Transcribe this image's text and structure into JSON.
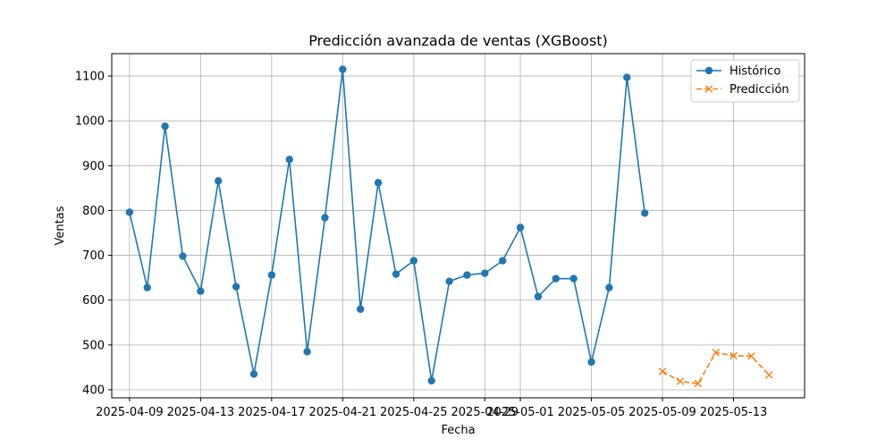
{
  "chart_data": {
    "type": "line",
    "title": "Predicción avanzada de ventas (XGBoost)",
    "xlabel": "Fecha",
    "ylabel": "Ventas",
    "x_tick_labels": [
      "2025-04-09",
      "2025-04-13",
      "2025-04-17",
      "2025-04-21",
      "2025-04-25",
      "2025-04-29",
      "2025-05-01",
      "2025-05-05",
      "2025-05-09",
      "2025-05-13"
    ],
    "y_ticks": [
      400,
      500,
      600,
      700,
      800,
      900,
      1000,
      1100
    ],
    "ylim": [
      382,
      1150
    ],
    "xlim": [
      "2025-04-08",
      "2025-05-17"
    ],
    "grid": true,
    "legend_position": "top-right",
    "series": [
      {
        "name": "Histórico",
        "color": "#1f77b4",
        "marker": "circle",
        "linestyle": "solid",
        "x": [
          "2025-04-09",
          "2025-04-10",
          "2025-04-11",
          "2025-04-12",
          "2025-04-13",
          "2025-04-14",
          "2025-04-15",
          "2025-04-16",
          "2025-04-17",
          "2025-04-18",
          "2025-04-19",
          "2025-04-20",
          "2025-04-21",
          "2025-04-22",
          "2025-04-23",
          "2025-04-24",
          "2025-04-25",
          "2025-04-26",
          "2025-04-27",
          "2025-04-28",
          "2025-04-29",
          "2025-04-30",
          "2025-05-01",
          "2025-05-02",
          "2025-05-03",
          "2025-05-04",
          "2025-05-05",
          "2025-05-06",
          "2025-05-07",
          "2025-05-08"
        ],
        "y": [
          796,
          628,
          988,
          698,
          620,
          866,
          630,
          435,
          656,
          914,
          485,
          784,
          1115,
          580,
          862,
          658,
          688,
          420,
          642,
          656,
          660,
          688,
          762,
          608,
          648,
          648,
          462,
          628,
          1097,
          794
        ]
      },
      {
        "name": "Predicción",
        "color": "#ff7f0e",
        "marker": "x",
        "linestyle": "dashed",
        "x": [
          "2025-05-09",
          "2025-05-10",
          "2025-05-11",
          "2025-05-12",
          "2025-05-13",
          "2025-05-14",
          "2025-05-15"
        ],
        "y": [
          441,
          419,
          414,
          483,
          476,
          475,
          433
        ]
      }
    ]
  }
}
